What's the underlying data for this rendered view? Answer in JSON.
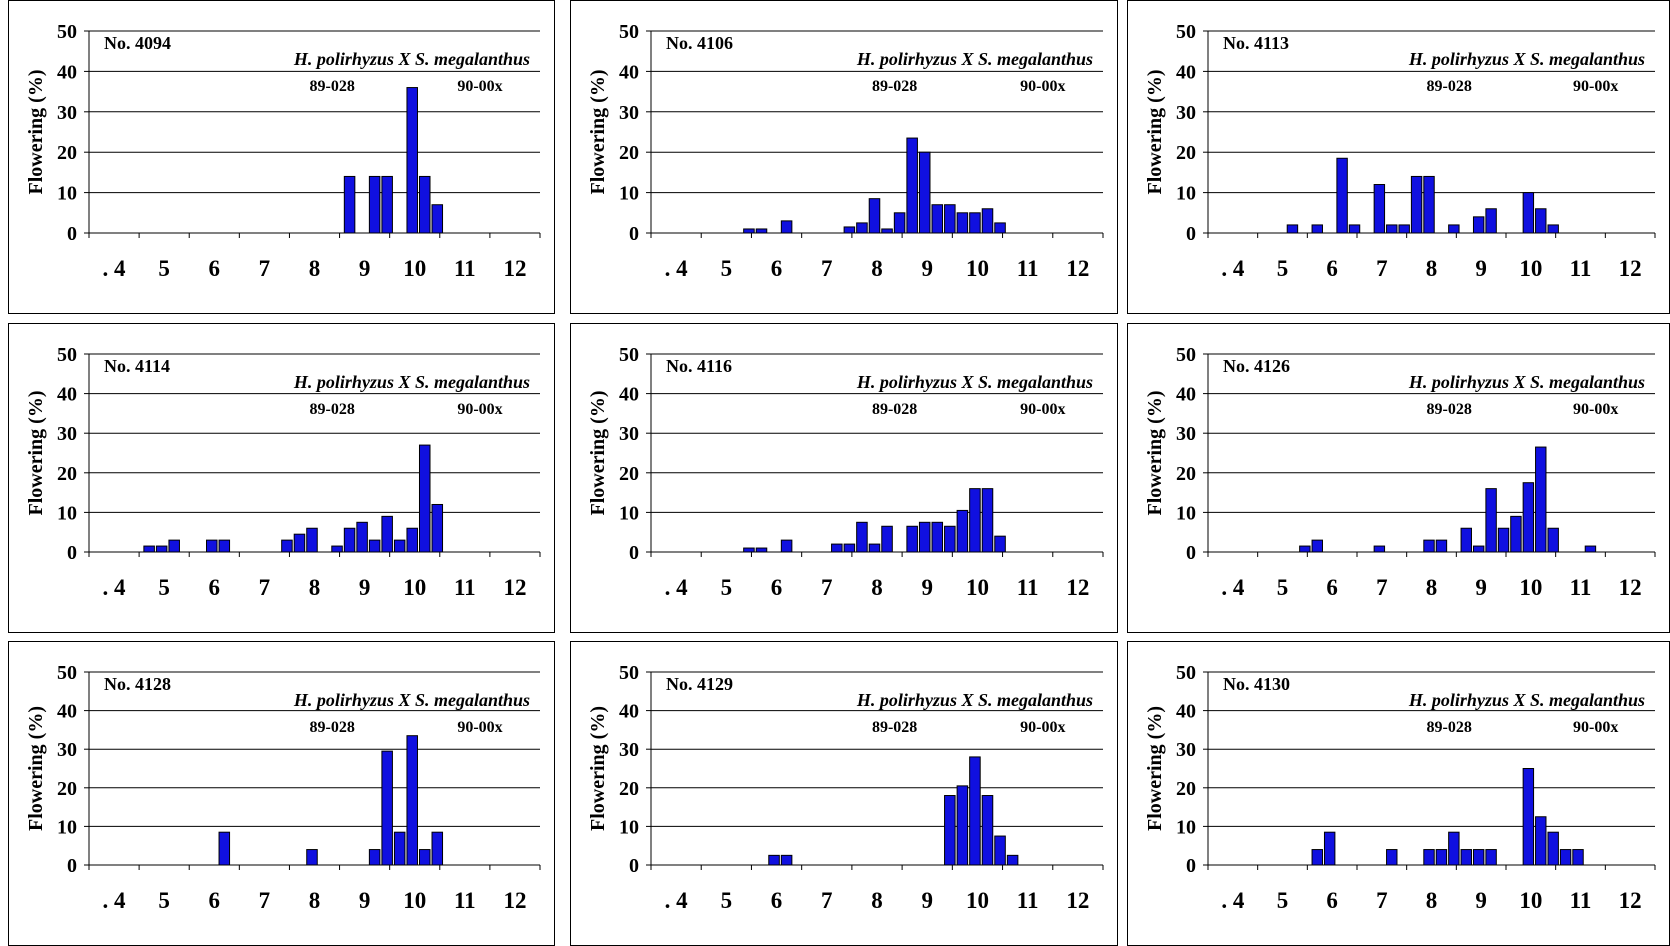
{
  "header": {
    "cutoff_title": "..."
  },
  "shared": {
    "ylabel": "Flowering (%)",
    "ylim": [
      0,
      50
    ],
    "yticks": [
      0,
      10,
      20,
      30,
      40,
      50
    ],
    "xlabels": [
      ". 4",
      "5",
      "6",
      "7",
      "8",
      "9",
      "10",
      "11",
      "12"
    ],
    "subtitle": "H. polirhyzus X S. megalanthus",
    "parent1": "89-028",
    "parent2": "90-00x",
    "bar_color": "#1010e0"
  },
  "chart_data": [
    {
      "type": "bar",
      "title": "No. 4094",
      "bars": [
        {
          "x": 8.7,
          "value": 14
        },
        {
          "x": 9.2,
          "value": 14
        },
        {
          "x": 9.45,
          "value": 14
        },
        {
          "x": 9.95,
          "value": 36
        },
        {
          "x": 10.2,
          "value": 14
        },
        {
          "x": 10.45,
          "value": 7
        }
      ]
    },
    {
      "type": "bar",
      "title": "No. 4106",
      "bars": [
        {
          "x": 5.45,
          "value": 1
        },
        {
          "x": 5.7,
          "value": 1
        },
        {
          "x": 6.2,
          "value": 3
        },
        {
          "x": 7.45,
          "value": 1.5
        },
        {
          "x": 7.7,
          "value": 2.5
        },
        {
          "x": 7.95,
          "value": 8.5
        },
        {
          "x": 8.2,
          "value": 1
        },
        {
          "x": 8.45,
          "value": 5
        },
        {
          "x": 8.7,
          "value": 23.5
        },
        {
          "x": 8.95,
          "value": 20
        },
        {
          "x": 9.2,
          "value": 7
        },
        {
          "x": 9.45,
          "value": 7
        },
        {
          "x": 9.7,
          "value": 5
        },
        {
          "x": 9.95,
          "value": 5
        },
        {
          "x": 10.2,
          "value": 6
        },
        {
          "x": 10.45,
          "value": 2.5
        }
      ]
    },
    {
      "type": "bar",
      "title": "No. 4113",
      "bars": [
        {
          "x": 5.2,
          "value": 2
        },
        {
          "x": 5.7,
          "value": 2
        },
        {
          "x": 6.2,
          "value": 18.5
        },
        {
          "x": 6.45,
          "value": 2
        },
        {
          "x": 6.95,
          "value": 12
        },
        {
          "x": 7.2,
          "value": 2
        },
        {
          "x": 7.45,
          "value": 2
        },
        {
          "x": 7.7,
          "value": 14
        },
        {
          "x": 7.95,
          "value": 14
        },
        {
          "x": 8.45,
          "value": 2
        },
        {
          "x": 8.95,
          "value": 4
        },
        {
          "x": 9.2,
          "value": 6
        },
        {
          "x": 9.95,
          "value": 10
        },
        {
          "x": 10.2,
          "value": 6
        },
        {
          "x": 10.45,
          "value": 2
        }
      ]
    },
    {
      "type": "bar",
      "title": "No. 4114",
      "bars": [
        {
          "x": 4.7,
          "value": 1.5
        },
        {
          "x": 4.95,
          "value": 1.5
        },
        {
          "x": 5.2,
          "value": 3
        },
        {
          "x": 5.95,
          "value": 3
        },
        {
          "x": 6.2,
          "value": 3
        },
        {
          "x": 7.45,
          "value": 3
        },
        {
          "x": 7.7,
          "value": 4.5
        },
        {
          "x": 7.95,
          "value": 6
        },
        {
          "x": 8.45,
          "value": 1.5
        },
        {
          "x": 8.7,
          "value": 6
        },
        {
          "x": 8.95,
          "value": 7.5
        },
        {
          "x": 9.2,
          "value": 3
        },
        {
          "x": 9.45,
          "value": 9
        },
        {
          "x": 9.7,
          "value": 3
        },
        {
          "x": 9.95,
          "value": 6
        },
        {
          "x": 10.2,
          "value": 27
        },
        {
          "x": 10.45,
          "value": 12
        }
      ]
    },
    {
      "type": "bar",
      "title": "No. 4116",
      "bars": [
        {
          "x": 5.45,
          "value": 1
        },
        {
          "x": 5.7,
          "value": 1
        },
        {
          "x": 6.2,
          "value": 3
        },
        {
          "x": 7.2,
          "value": 2
        },
        {
          "x": 7.45,
          "value": 2
        },
        {
          "x": 7.7,
          "value": 7.5
        },
        {
          "x": 7.95,
          "value": 2
        },
        {
          "x": 8.2,
          "value": 6.5
        },
        {
          "x": 8.7,
          "value": 6.5
        },
        {
          "x": 8.95,
          "value": 7.5
        },
        {
          "x": 9.2,
          "value": 7.5
        },
        {
          "x": 9.45,
          "value": 6.5
        },
        {
          "x": 9.7,
          "value": 10.5
        },
        {
          "x": 9.95,
          "value": 16
        },
        {
          "x": 10.2,
          "value": 16
        },
        {
          "x": 10.45,
          "value": 4
        }
      ]
    },
    {
      "type": "bar",
      "title": "No. 4126",
      "bars": [
        {
          "x": 5.45,
          "value": 1.5
        },
        {
          "x": 5.7,
          "value": 3
        },
        {
          "x": 6.95,
          "value": 1.5
        },
        {
          "x": 7.95,
          "value": 3
        },
        {
          "x": 8.2,
          "value": 3
        },
        {
          "x": 8.7,
          "value": 6
        },
        {
          "x": 8.95,
          "value": 1.5
        },
        {
          "x": 9.2,
          "value": 16
        },
        {
          "x": 9.45,
          "value": 6
        },
        {
          "x": 9.7,
          "value": 9
        },
        {
          "x": 9.95,
          "value": 17.5
        },
        {
          "x": 10.2,
          "value": 26.5
        },
        {
          "x": 10.45,
          "value": 6
        },
        {
          "x": 11.2,
          "value": 1.5
        }
      ]
    },
    {
      "type": "bar",
      "title": "No. 4128",
      "bars": [
        {
          "x": 6.2,
          "value": 8.5
        },
        {
          "x": 7.95,
          "value": 4
        },
        {
          "x": 9.2,
          "value": 4
        },
        {
          "x": 9.45,
          "value": 29.5
        },
        {
          "x": 9.7,
          "value": 8.5
        },
        {
          "x": 9.95,
          "value": 33.5
        },
        {
          "x": 10.2,
          "value": 4
        },
        {
          "x": 10.45,
          "value": 8.5
        }
      ]
    },
    {
      "type": "bar",
      "title": "No. 4129",
      "bars": [
        {
          "x": 5.95,
          "value": 2.5
        },
        {
          "x": 6.2,
          "value": 2.5
        },
        {
          "x": 9.45,
          "value": 18
        },
        {
          "x": 9.7,
          "value": 20.5
        },
        {
          "x": 9.95,
          "value": 28
        },
        {
          "x": 10.2,
          "value": 18
        },
        {
          "x": 10.45,
          "value": 7.5
        },
        {
          "x": 10.7,
          "value": 2.5
        }
      ]
    },
    {
      "type": "bar",
      "title": "No. 4130",
      "bars": [
        {
          "x": 5.7,
          "value": 4
        },
        {
          "x": 5.95,
          "value": 8.5
        },
        {
          "x": 7.2,
          "value": 4
        },
        {
          "x": 7.95,
          "value": 4
        },
        {
          "x": 8.2,
          "value": 4
        },
        {
          "x": 8.45,
          "value": 8.5
        },
        {
          "x": 8.7,
          "value": 4
        },
        {
          "x": 8.95,
          "value": 4
        },
        {
          "x": 9.2,
          "value": 4
        },
        {
          "x": 9.95,
          "value": 25
        },
        {
          "x": 10.2,
          "value": 12.5
        },
        {
          "x": 10.45,
          "value": 8.5
        },
        {
          "x": 10.7,
          "value": 4
        },
        {
          "x": 10.95,
          "value": 4
        }
      ]
    }
  ]
}
